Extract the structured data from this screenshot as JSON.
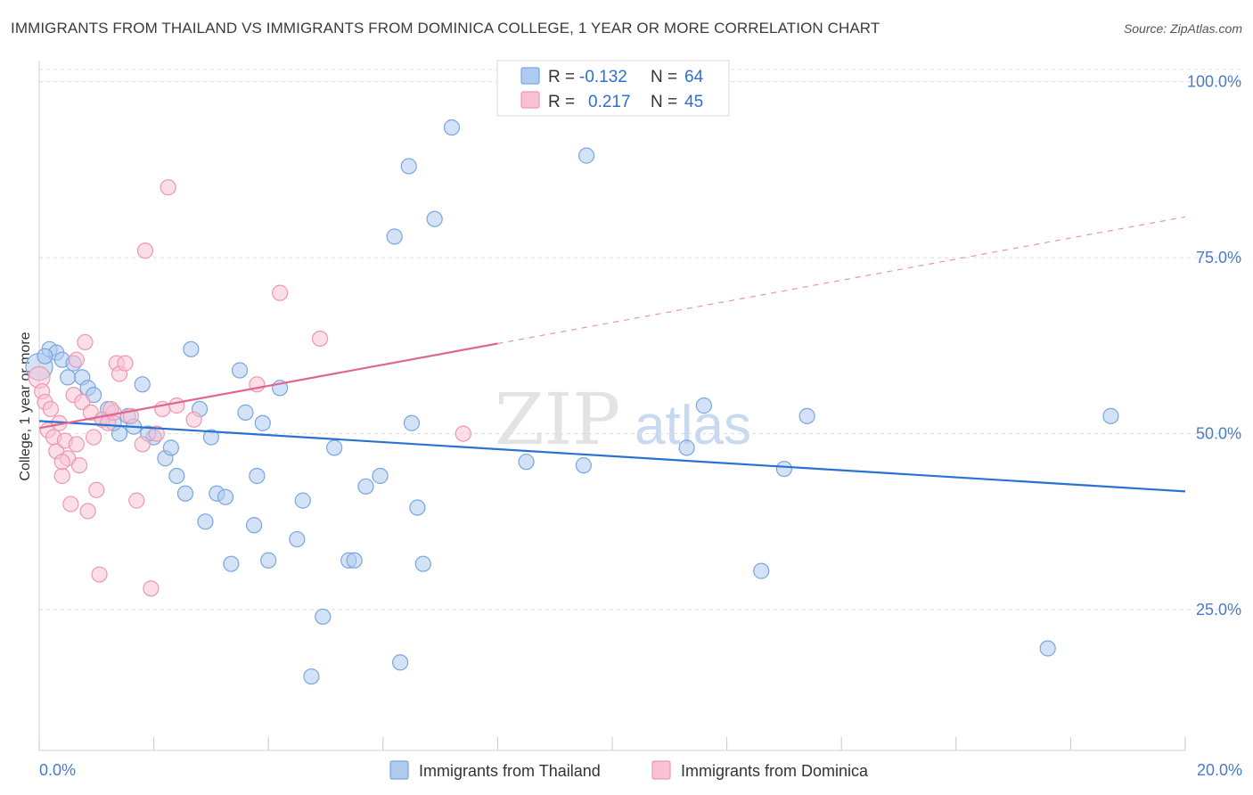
{
  "header": {
    "title": "IMMIGRANTS FROM THAILAND VS IMMIGRANTS FROM DOMINICA COLLEGE, 1 YEAR OR MORE CORRELATION CHART",
    "source": "Source: ZipAtlas.com"
  },
  "watermark": {
    "zip": "ZIP",
    "atlas": "atlas"
  },
  "stats_legend": {
    "thailand": {
      "r_label": "R =",
      "r_value": "-0.132",
      "n_label": "N =",
      "n_value": "64"
    },
    "dominica": {
      "r_label": "R =",
      "r_value": "0.217",
      "n_label": "N =",
      "n_value": "45"
    }
  },
  "bottom_legend": {
    "thailand": "Immigrants from Thailand",
    "dominica": "Immigrants from Dominica"
  },
  "colors": {
    "thailand_fill": "#aecbf0",
    "thailand_stroke": "#7aa6dd",
    "thailand_line": "#2a72d0",
    "dominica_fill": "#f9c2d3",
    "dominica_stroke": "#ee97b3",
    "dominica_line": "#e0668f",
    "axis_text": "#4a7cc4",
    "grid": "#dcdcdc"
  },
  "chart_data": {
    "type": "scatter",
    "title": "IMMIGRANTS FROM THAILAND VS IMMIGRANTS FROM DOMINICA COLLEGE, 1 YEAR OR MORE CORRELATION CHART",
    "xlabel": "",
    "ylabel": "College, 1 year or more",
    "xlim": [
      0,
      20
    ],
    "ylim": [
      5,
      103
    ],
    "x_tick_labels": [
      "0.0%",
      "20.0%"
    ],
    "y_ticks": [
      25,
      50,
      75,
      100
    ],
    "y_tick_labels": [
      "25.0%",
      "50.0%",
      "75.0%",
      "100.0%"
    ],
    "grid": true,
    "legend_position": "top-center",
    "series": [
      {
        "name": "Immigrants from Thailand",
        "stats": {
          "R": -0.132,
          "N": 64
        },
        "trend": {
          "x": [
            0,
            20
          ],
          "y": [
            51.8,
            41.8
          ],
          "dashed_from": null
        },
        "points": [
          [
            0.0,
            59.5
          ],
          [
            0.18,
            62.0
          ],
          [
            0.3,
            61.5
          ],
          [
            0.4,
            60.5
          ],
          [
            0.5,
            58.0
          ],
          [
            0.6,
            60.0
          ],
          [
            0.75,
            58.0
          ],
          [
            0.85,
            56.5
          ],
          [
            0.95,
            55.5
          ],
          [
            1.1,
            52.0
          ],
          [
            1.2,
            53.5
          ],
          [
            1.4,
            50.0
          ],
          [
            1.55,
            52.5
          ],
          [
            1.65,
            51.0
          ],
          [
            1.8,
            57.0
          ],
          [
            2.0,
            49.5
          ],
          [
            2.2,
            46.5
          ],
          [
            2.3,
            48.0
          ],
          [
            2.4,
            44.0
          ],
          [
            2.55,
            41.5
          ],
          [
            2.65,
            62.0
          ],
          [
            2.8,
            53.5
          ],
          [
            2.9,
            37.5
          ],
          [
            3.0,
            49.5
          ],
          [
            3.1,
            41.5
          ],
          [
            3.25,
            41.0
          ],
          [
            3.35,
            31.5
          ],
          [
            3.5,
            59.0
          ],
          [
            3.6,
            53.0
          ],
          [
            3.75,
            37.0
          ],
          [
            3.8,
            44.0
          ],
          [
            3.9,
            51.5
          ],
          [
            4.0,
            32.0
          ],
          [
            4.2,
            56.5
          ],
          [
            4.5,
            35.0
          ],
          [
            4.6,
            40.5
          ],
          [
            4.75,
            15.5
          ],
          [
            4.95,
            24.0
          ],
          [
            5.15,
            48.0
          ],
          [
            5.4,
            32.0
          ],
          [
            5.5,
            32.0
          ],
          [
            5.7,
            42.5
          ],
          [
            5.95,
            44.0
          ],
          [
            6.2,
            78.0
          ],
          [
            6.3,
            17.5
          ],
          [
            6.45,
            88.0
          ],
          [
            6.5,
            51.5
          ],
          [
            6.6,
            39.5
          ],
          [
            6.7,
            31.5
          ],
          [
            6.9,
            80.5
          ],
          [
            7.2,
            93.5
          ],
          [
            8.5,
            46.0
          ],
          [
            9.5,
            45.5
          ],
          [
            9.55,
            89.5
          ],
          [
            11.3,
            48.0
          ],
          [
            11.6,
            54.0
          ],
          [
            12.6,
            30.5
          ],
          [
            13.0,
            45.0
          ],
          [
            13.4,
            52.5
          ],
          [
            17.6,
            19.5
          ],
          [
            18.7,
            52.5
          ],
          [
            0.1,
            61.0
          ],
          [
            1.3,
            51.5
          ],
          [
            1.9,
            50.0
          ]
        ]
      },
      {
        "name": "Immigrants from Dominica",
        "stats": {
          "R": 0.217,
          "N": 45
        },
        "trend": {
          "x": [
            0,
            20
          ],
          "y": [
            50.8,
            80.8
          ],
          "dashed_from": 8.0
        },
        "points": [
          [
            0.0,
            58.0
          ],
          [
            0.05,
            56.0
          ],
          [
            0.1,
            54.5
          ],
          [
            0.15,
            50.5
          ],
          [
            0.2,
            53.5
          ],
          [
            0.25,
            49.5
          ],
          [
            0.3,
            47.5
          ],
          [
            0.35,
            51.5
          ],
          [
            0.4,
            44.0
          ],
          [
            0.45,
            49.0
          ],
          [
            0.5,
            46.5
          ],
          [
            0.55,
            40.0
          ],
          [
            0.6,
            55.5
          ],
          [
            0.65,
            48.5
          ],
          [
            0.7,
            45.5
          ],
          [
            0.75,
            54.5
          ],
          [
            0.8,
            63.0
          ],
          [
            0.85,
            39.0
          ],
          [
            0.9,
            53.0
          ],
          [
            0.95,
            49.5
          ],
          [
            1.0,
            42.0
          ],
          [
            1.05,
            30.0
          ],
          [
            1.1,
            52.0
          ],
          [
            1.2,
            51.5
          ],
          [
            1.3,
            53.0
          ],
          [
            1.35,
            60.0
          ],
          [
            1.4,
            58.5
          ],
          [
            1.5,
            60.0
          ],
          [
            1.6,
            52.5
          ],
          [
            1.7,
            40.5
          ],
          [
            1.8,
            48.5
          ],
          [
            1.85,
            76.0
          ],
          [
            1.95,
            28.0
          ],
          [
            2.05,
            50.0
          ],
          [
            2.15,
            53.5
          ],
          [
            2.25,
            85.0
          ],
          [
            2.4,
            54.0
          ],
          [
            2.7,
            52.0
          ],
          [
            3.8,
            57.0
          ],
          [
            4.2,
            70.0
          ],
          [
            4.9,
            63.5
          ],
          [
            7.4,
            50.0
          ],
          [
            0.4,
            46.0
          ],
          [
            0.65,
            60.5
          ],
          [
            1.25,
            53.5
          ]
        ]
      }
    ]
  }
}
